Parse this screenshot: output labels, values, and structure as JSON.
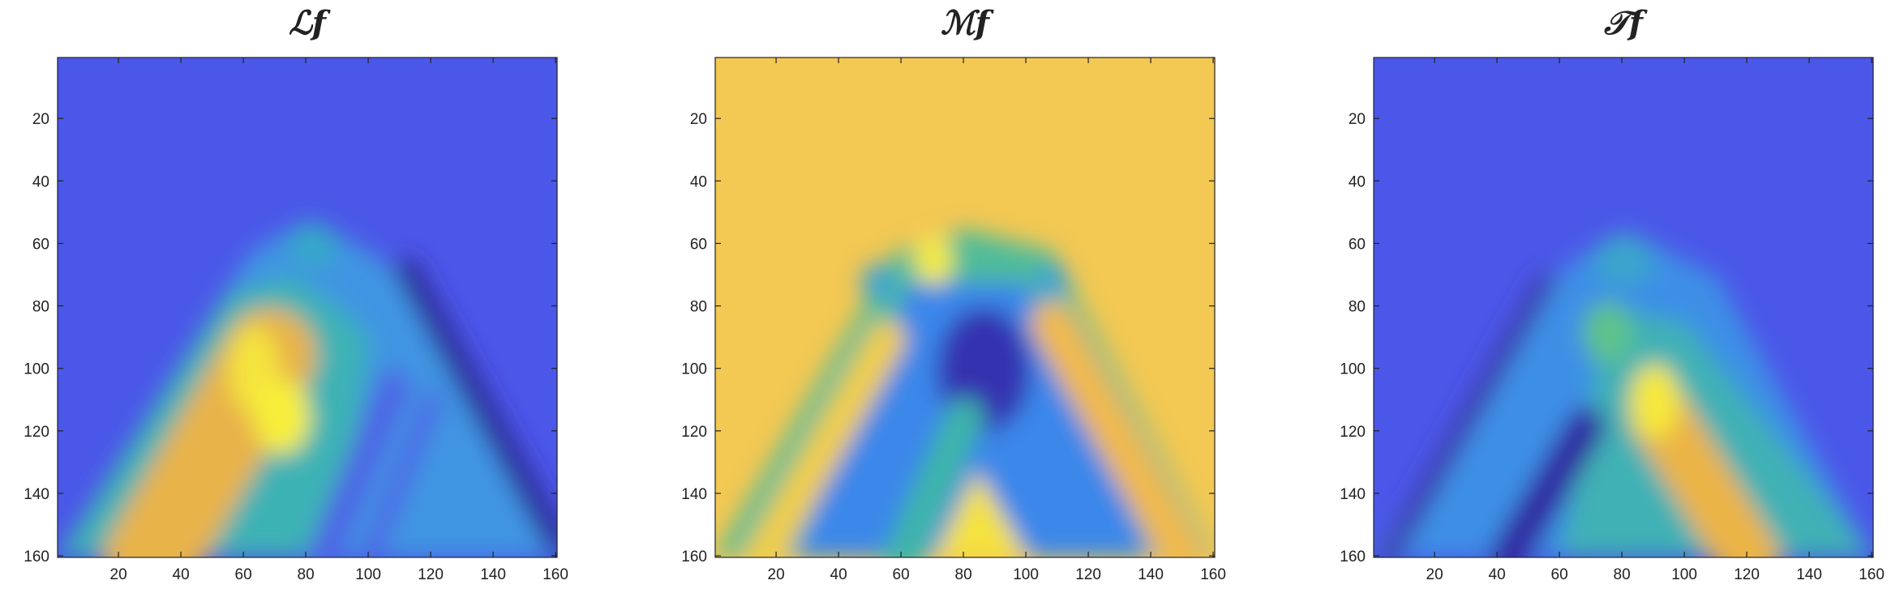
{
  "chart_data": [
    {
      "type": "heatmap",
      "title": "ℒf",
      "colormap": "parula",
      "background_color": "#4b57e8",
      "xlim": [
        0.5,
        160.5
      ],
      "ylim": [
        0.5,
        160.5
      ],
      "y_reversed": true,
      "xticks": [
        20,
        40,
        60,
        80,
        100,
        120,
        140,
        160
      ],
      "yticks": [
        20,
        40,
        60,
        80,
        100,
        120,
        140,
        160
      ]
    },
    {
      "type": "heatmap",
      "title": "ℳf",
      "colormap": "parula",
      "background_color": "#f3c853",
      "xlim": [
        0.5,
        160.5
      ],
      "ylim": [
        0.5,
        160.5
      ],
      "y_reversed": true,
      "xticks": [
        20,
        40,
        60,
        80,
        100,
        120,
        140,
        160
      ],
      "yticks": [
        20,
        40,
        60,
        80,
        100,
        120,
        140,
        160
      ]
    },
    {
      "type": "heatmap",
      "title": "𝒯f",
      "colormap": "parula",
      "background_color": "#4b57e8",
      "xlim": [
        0.5,
        160.5
      ],
      "ylim": [
        0.5,
        160.5
      ],
      "y_reversed": true,
      "xticks": [
        20,
        40,
        60,
        80,
        100,
        120,
        140,
        160
      ],
      "yticks": [
        20,
        40,
        60,
        80,
        100,
        120,
        140,
        160
      ]
    }
  ]
}
